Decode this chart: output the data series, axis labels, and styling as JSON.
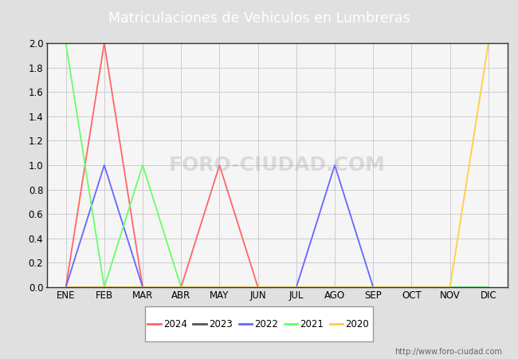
{
  "title": "Matriculaciones de Vehiculos en Lumbreras",
  "title_bgcolor": "#4f86c6",
  "title_color": "white",
  "months": [
    "ENE",
    "FEB",
    "MAR",
    "ABR",
    "MAY",
    "JUN",
    "JUL",
    "AGO",
    "SEP",
    "OCT",
    "NOV",
    "DIC"
  ],
  "series": {
    "2024": {
      "color": "#ff6666",
      "values": [
        0,
        2,
        0,
        0,
        1,
        0,
        0,
        0,
        0,
        0,
        0,
        0
      ]
    },
    "2023": {
      "color": "#555555",
      "values": [
        0,
        0,
        0,
        0,
        0,
        0,
        0,
        0,
        0,
        0,
        0,
        0
      ]
    },
    "2022": {
      "color": "#6666ff",
      "values": [
        0,
        1,
        0,
        0,
        0,
        0,
        0,
        1,
        0,
        0,
        0,
        0
      ]
    },
    "2021": {
      "color": "#66ff66",
      "values": [
        2,
        0,
        1,
        0,
        0,
        0,
        0,
        0,
        0,
        0,
        0,
        0
      ]
    },
    "2020": {
      "color": "#ffcc44",
      "values": [
        0,
        0,
        0,
        0,
        0,
        0,
        0,
        0,
        0,
        0,
        0,
        2
      ]
    }
  },
  "ylim": [
    0,
    2.0
  ],
  "yticks": [
    0.0,
    0.2,
    0.4,
    0.6,
    0.8,
    1.0,
    1.2,
    1.4,
    1.6,
    1.8,
    2.0
  ],
  "grid_color": "#cccccc",
  "outer_bg": "#4f86c6",
  "plot_bg_color": "#f5f5f5",
  "below_bg": "#e0e0e0",
  "watermark_text": "FORO-CIUDAD.COM",
  "watermark_url": "http://www.foro-ciudad.com",
  "legend_order": [
    "2024",
    "2023",
    "2022",
    "2021",
    "2020"
  ]
}
